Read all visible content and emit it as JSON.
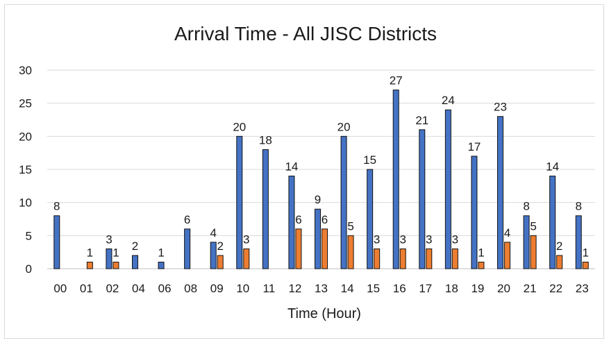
{
  "chart_data": {
    "type": "bar",
    "title": "Arrival Time - All JISC Districts",
    "xlabel": "Time (Hour)",
    "ylabel": "",
    "ylim": [
      0,
      30
    ],
    "yticks": [
      0,
      5,
      10,
      15,
      20,
      25,
      30
    ],
    "grid": true,
    "legend": "none",
    "categories": [
      "00",
      "01",
      "02",
      "04",
      "06",
      "08",
      "09",
      "10",
      "11",
      "12",
      "13",
      "14",
      "15",
      "16",
      "17",
      "18",
      "19",
      "20",
      "21",
      "22",
      "23"
    ],
    "series": [
      {
        "color": "#4472c4",
        "values": [
          8,
          null,
          3,
          2,
          1,
          6,
          4,
          20,
          18,
          14,
          9,
          20,
          15,
          27,
          21,
          24,
          17,
          23,
          8,
          14,
          8
        ]
      },
      {
        "color": "#ed7d31",
        "values": [
          null,
          1,
          1,
          null,
          null,
          null,
          2,
          3,
          null,
          6,
          6,
          5,
          3,
          3,
          3,
          3,
          1,
          4,
          5,
          2,
          1
        ]
      }
    ]
  }
}
